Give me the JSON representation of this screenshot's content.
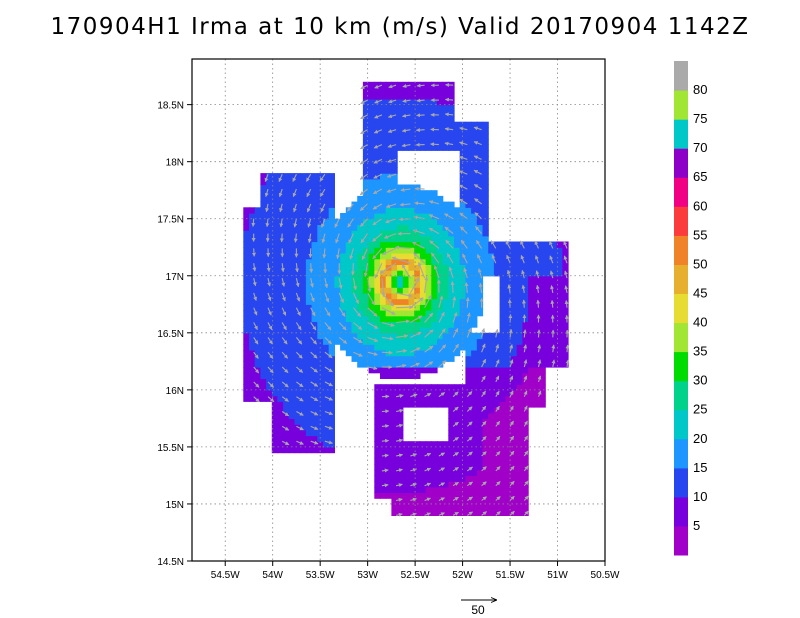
{
  "title": "170904H1 Irma at 10 km (m/s) Valid 20170904 1142Z",
  "chart_data": {
    "type": "heatmap",
    "title": "170904H1 Irma at 10 km (m/s) Valid 20170904 1142Z",
    "units": "m/s",
    "xlim": [
      -54.85,
      -50.5
    ],
    "ylim": [
      14.5,
      18.9
    ],
    "x_ticks": [
      {
        "value": -54.5,
        "label": "54.5W"
      },
      {
        "value": -54,
        "label": "54W"
      },
      {
        "value": -53.5,
        "label": "53.5W"
      },
      {
        "value": -53,
        "label": "53W"
      },
      {
        "value": -52.5,
        "label": "52.5W"
      },
      {
        "value": -52,
        "label": "52W"
      },
      {
        "value": -51.5,
        "label": "51.5W"
      },
      {
        "value": -51,
        "label": "51W"
      },
      {
        "value": -50.5,
        "label": "50.5W"
      }
    ],
    "y_ticks": [
      {
        "value": 14.5,
        "label": "14.5N"
      },
      {
        "value": 15,
        "label": "15N"
      },
      {
        "value": 15.5,
        "label": "15.5N"
      },
      {
        "value": 16,
        "label": "16N"
      },
      {
        "value": 16.5,
        "label": "16.5N"
      },
      {
        "value": 17,
        "label": "17N"
      },
      {
        "value": 17.5,
        "label": "17.5N"
      },
      {
        "value": 18,
        "label": "18N"
      },
      {
        "value": 18.5,
        "label": "18.5N"
      }
    ],
    "grid": true,
    "center": {
      "lon": -52.65,
      "lat": 16.95
    },
    "max_wind": 52,
    "reference_vector": {
      "label": "50",
      "value": 50
    },
    "colorbar": {
      "labels": [
        "5",
        "10",
        "15",
        "20",
        "25",
        "30",
        "35",
        "40",
        "45",
        "50",
        "55",
        "60",
        "65",
        "70",
        "75",
        "80"
      ],
      "colors": [
        "#a000c8",
        "#7800dc",
        "#2846f0",
        "#1e96ff",
        "#00c8c8",
        "#00d28c",
        "#00dc00",
        "#a0e632",
        "#e6dc32",
        "#e6af2d",
        "#f08228",
        "#fa3c3c",
        "#f00082",
        "#8c00c8",
        "#00c8c8",
        "#a0e632",
        "#aaaaaa"
      ]
    },
    "coverage_regions": [
      {
        "region": "core",
        "lon": [
          -53.7,
          -51.9
        ],
        "lat": [
          16.1,
          17.8
        ],
        "values": [
          20,
          52
        ]
      },
      {
        "region": "northern band",
        "lon": [
          -53.0,
          -51.7
        ],
        "lat": [
          17.3,
          18.7
        ],
        "values": [
          15,
          28
        ]
      },
      {
        "region": "western band",
        "lon": [
          -54.3,
          -53.4
        ],
        "lat": [
          15.4,
          17.9
        ],
        "values": [
          15,
          26
        ]
      },
      {
        "region": "eastern band",
        "lon": [
          -51.9,
          -50.9
        ],
        "lat": [
          15.8,
          17.4
        ],
        "values": [
          10,
          24
        ]
      },
      {
        "region": "southern band",
        "lon": [
          -52.9,
          -51.3
        ],
        "lat": [
          14.9,
          16.0
        ],
        "values": [
          5,
          14
        ]
      }
    ]
  }
}
